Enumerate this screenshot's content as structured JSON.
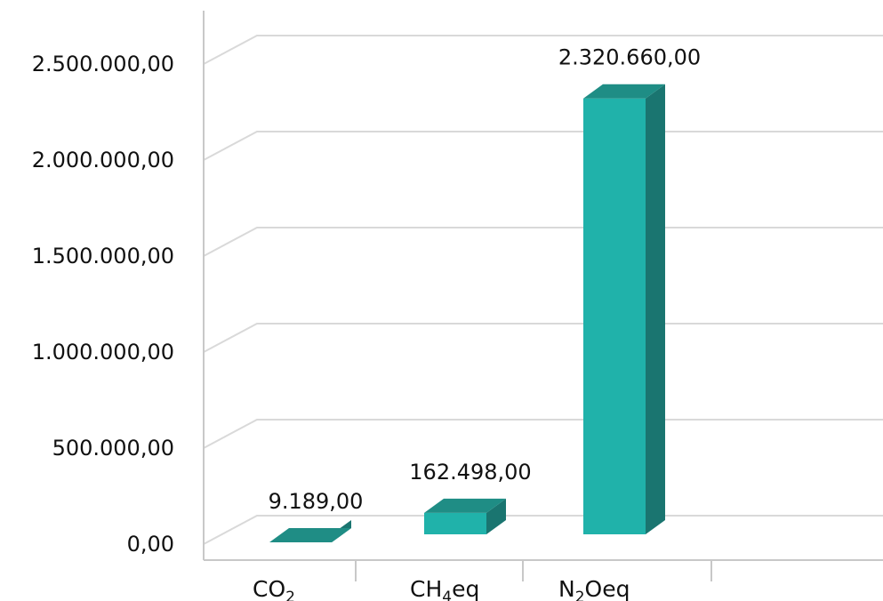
{
  "chart_data": {
    "type": "bar",
    "style": "3d",
    "categories": [
      {
        "base": "CO",
        "sub": "2",
        "suffix": ""
      },
      {
        "base": "CH",
        "sub": "4",
        "suffix": "eq"
      },
      {
        "base": "N",
        "sub": "2",
        "suffix": "Oeq"
      }
    ],
    "values": [
      9189,
      162498,
      2320660
    ],
    "data_labels": [
      "9.189,00",
      "162.498,00",
      "2.320.660,00"
    ],
    "y_ticks": [
      {
        "value": 0,
        "label": "0,00"
      },
      {
        "value": 500000,
        "label": "500.000,00"
      },
      {
        "value": 1000000,
        "label": "1.000.000,00"
      },
      {
        "value": 1500000,
        "label": "1.500.000,00"
      },
      {
        "value": 2000000,
        "label": "2.000.000,00"
      },
      {
        "value": 2500000,
        "label": "2.500.000,00"
      }
    ],
    "ylim": [
      0,
      2750000
    ],
    "grid": true,
    "legend": "none",
    "colors": {
      "front": "#20b2aa",
      "side": "#1a7570",
      "top": "#1f8d85",
      "grid": "#d9d9d9",
      "axis": "#c8c8c8"
    }
  }
}
